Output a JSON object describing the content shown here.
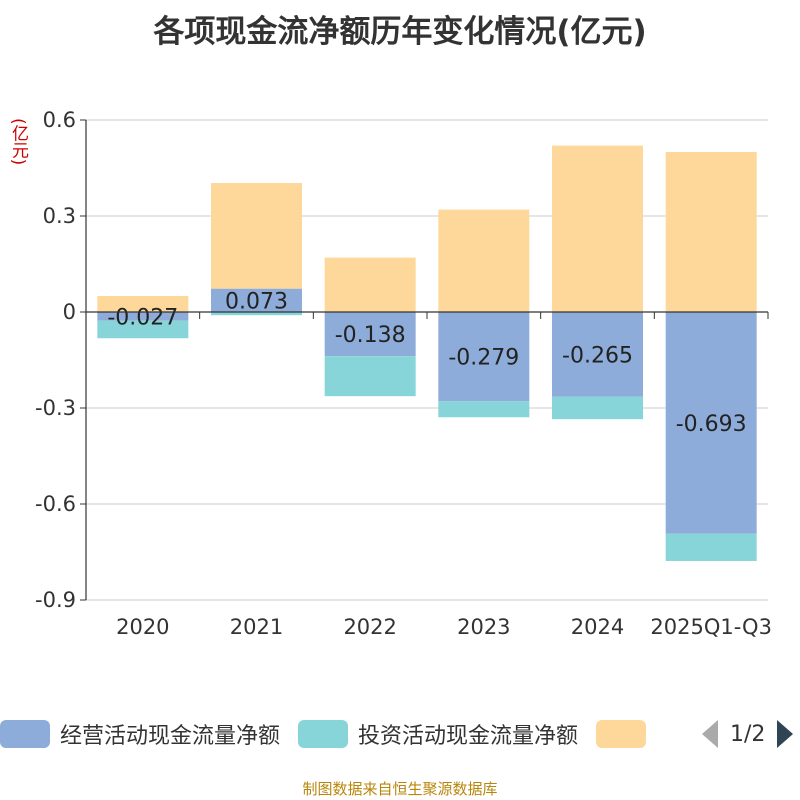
{
  "chart_data": {
    "type": "bar",
    "title": "各项现金流净额历年变化情况(亿元)",
    "ylabel": "(亿元)",
    "ylim": [
      -0.9,
      0.6
    ],
    "yticks": [
      0.6,
      0.3,
      0,
      -0.3,
      -0.6,
      -0.9
    ],
    "ytick_labels": [
      "0.6",
      "0.3",
      "0",
      "-0.3",
      "-0.6",
      "-0.9"
    ],
    "categories": [
      "2020",
      "2021",
      "2022",
      "2023",
      "2024",
      "2025Q1-Q3"
    ],
    "series": [
      {
        "name": "经营活动现金流量净额",
        "color": "#8eacd9",
        "values": [
          -0.027,
          0.073,
          -0.138,
          -0.279,
          -0.265,
          -0.693
        ],
        "labels": [
          "-0.027",
          "0.073",
          "-0.138",
          "-0.279",
          "-0.265",
          "-0.693"
        ]
      },
      {
        "name": "投资活动现金流量净额",
        "color": "#87d5d8",
        "values": [
          -0.055,
          -0.01,
          -0.125,
          -0.05,
          -0.07,
          -0.085
        ]
      },
      {
        "name": "",
        "color": "#fdd89a",
        "values": [
          0.05,
          0.33,
          0.17,
          0.32,
          0.52,
          0.5
        ]
      }
    ]
  },
  "legend": {
    "items": [
      {
        "label": "经营活动现金流量净额",
        "color": "#8eacd9"
      },
      {
        "label": "投资活动现金流量净额",
        "color": "#87d5d8"
      },
      {
        "label": "",
        "color": "#fdd89a"
      }
    ],
    "page": "1/2"
  },
  "source": "制图数据来自恒生聚源数据库"
}
